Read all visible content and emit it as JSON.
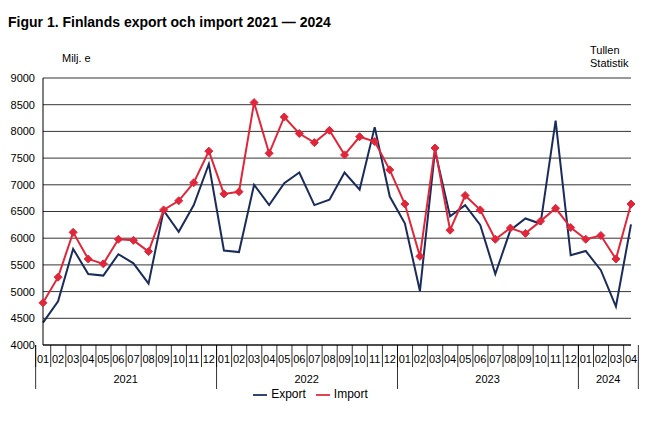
{
  "chart_data": {
    "type": "line",
    "title": "Figur 1. Finlands export och import 2021 — 2024",
    "y_label": "Milj. e",
    "source": [
      "Tullen",
      "Statistik"
    ],
    "categories": [
      "01",
      "02",
      "03",
      "04",
      "05",
      "06",
      "07",
      "08",
      "09",
      "10",
      "11",
      "12",
      "01",
      "02",
      "03",
      "04",
      "05",
      "06",
      "07",
      "08",
      "09",
      "10",
      "11",
      "12",
      "01",
      "02",
      "03",
      "04",
      "05",
      "06",
      "07",
      "08",
      "09",
      "10",
      "11",
      "12",
      "01",
      "02",
      "03",
      "04"
    ],
    "groups": [
      {
        "label": "2021",
        "count": 12
      },
      {
        "label": "2022",
        "count": 12
      },
      {
        "label": "2023",
        "count": 12
      },
      {
        "label": "2024",
        "count": 4
      }
    ],
    "series": [
      {
        "name": "Export",
        "color": "#1a2b5c",
        "marker": "none",
        "values": [
          4420,
          4820,
          5800,
          5330,
          5300,
          5700,
          5530,
          5150,
          6520,
          6120,
          6620,
          7390,
          5770,
          5740,
          7000,
          6620,
          7030,
          7230,
          6620,
          6720,
          7230,
          6910,
          8080,
          6780,
          6280,
          5010,
          7640,
          6410,
          6620,
          6250,
          5330,
          6150,
          6370,
          6270,
          8200,
          5680,
          5760,
          5400,
          4720,
          6260
        ]
      },
      {
        "name": "Import",
        "color": "#e0263a",
        "marker": "diamond",
        "values": [
          4790,
          5270,
          6110,
          5610,
          5520,
          5980,
          5960,
          5750,
          6530,
          6700,
          7040,
          7630,
          6830,
          6870,
          8540,
          7590,
          8270,
          7960,
          7790,
          8020,
          7560,
          7900,
          7810,
          7280,
          6640,
          5660,
          7690,
          6150,
          6800,
          6530,
          5980,
          6190,
          6090,
          6320,
          6560,
          6200,
          5980,
          6050,
          5610,
          6640
        ]
      }
    ],
    "ylim": [
      4000,
      9000
    ],
    "yticks": [
      4000,
      4500,
      5000,
      5500,
      6000,
      6500,
      7000,
      7500,
      8000,
      8500,
      9000
    ],
    "grid": true,
    "legend": "bottom"
  }
}
